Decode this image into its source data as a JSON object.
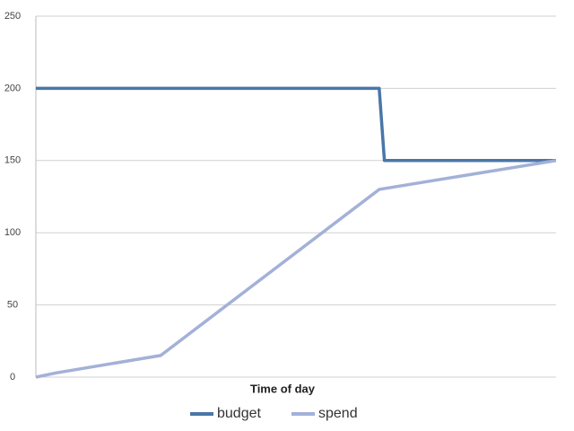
{
  "chart_data": {
    "type": "line",
    "x_label": "Time of day",
    "xlim": [
      0,
      100
    ],
    "ylim": [
      0,
      250
    ],
    "yticks": [
      0,
      50,
      100,
      150,
      200,
      250
    ],
    "grid": true,
    "legend": "bottom",
    "series": [
      {
        "name": "budget",
        "color": "#4a76a8",
        "x": [
          0,
          66,
          67,
          100
        ],
        "values": [
          200,
          200,
          150,
          150
        ]
      },
      {
        "name": "spend",
        "color": "#a3b1d8",
        "x": [
          0,
          4,
          24,
          66,
          100
        ],
        "values": [
          0,
          3,
          15,
          130,
          150
        ]
      }
    ]
  }
}
